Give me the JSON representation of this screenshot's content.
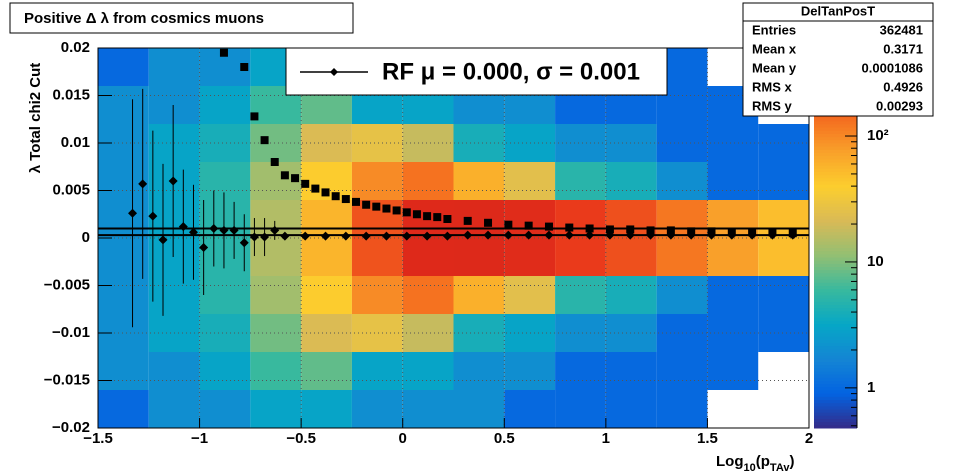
{
  "chart_data": {
    "type": "heatmap",
    "title": "Positive Δ λ from cosmics muons",
    "x_label_parts": [
      "Log",
      "10",
      "(p",
      "TAv",
      ")"
    ],
    "y_label": "λ  Total chi2 Cut",
    "xlim": [
      -1.5,
      2
    ],
    "ylim": [
      -0.02,
      0.02
    ],
    "zlim": [
      0.48,
      500
    ],
    "zlog": true,
    "grid": true,
    "xticks": [
      {
        "value": -1.5,
        "label": "−1.5"
      },
      {
        "value": -1,
        "label": "−1"
      },
      {
        "value": -0.5,
        "label": "−0.5"
      },
      0,
      0.5,
      1,
      1.5,
      2
    ],
    "yticks": [
      0.02,
      0.015,
      0.01,
      0.005,
      0,
      {
        "value": -0.005,
        "label": "−0.005"
      },
      {
        "value": -0.01,
        "label": "−0.01"
      },
      {
        "value": -0.015,
        "label": "−0.015"
      },
      {
        "value": -0.02,
        "label": "−0.02"
      }
    ],
    "zticks": [
      1,
      10,
      {
        "value": 100,
        "label": "10²"
      }
    ],
    "palette": [
      "#352a87",
      "#0363e1",
      "#1485d4",
      "#06a7c6",
      "#38b99e",
      "#92bf73",
      "#d9ba56",
      "#fcce2e",
      "#f9a12a",
      "#f46b1f",
      "#e8321a",
      "#d11f1a"
    ],
    "xbins": [
      -1.5,
      -1.25,
      -1,
      -0.75,
      -0.5,
      -0.25,
      0,
      0.25,
      0.5,
      0.75,
      1,
      1.25,
      1.5,
      1.75,
      2
    ],
    "ybins": [
      0.02,
      0.016,
      0.012,
      0.008,
      0.004,
      0,
      -0.004,
      -0.008,
      -0.012,
      -0.016,
      -0.02
    ],
    "counts": [
      [
        1,
        2,
        2,
        3,
        3,
        2,
        2,
        2,
        1,
        1,
        1,
        1,
        0,
        0
      ],
      [
        2,
        2,
        3,
        6,
        8,
        3,
        3,
        2,
        2,
        1,
        1,
        1,
        1,
        0
      ],
      [
        2,
        3,
        4,
        9,
        22,
        27,
        18,
        4,
        3,
        2,
        2,
        1,
        1,
        1
      ],
      [
        2,
        3,
        5,
        13,
        41,
        97,
        130,
        61,
        25,
        5,
        4,
        2,
        1,
        1
      ],
      [
        2,
        3,
        5,
        15,
        57,
        184,
        353,
        360,
        327,
        243,
        190,
        123,
        76,
        50
      ],
      [
        2,
        3,
        5,
        15,
        57,
        184,
        353,
        360,
        327,
        243,
        190,
        123,
        76,
        50
      ],
      [
        2,
        3,
        5,
        13,
        41,
        97,
        130,
        61,
        25,
        5,
        4,
        2,
        1,
        1
      ],
      [
        2,
        3,
        4,
        9,
        22,
        27,
        18,
        4,
        3,
        2,
        2,
        1,
        1,
        1
      ],
      [
        2,
        2,
        3,
        6,
        8,
        3,
        3,
        2,
        2,
        1,
        1,
        1,
        1,
        0
      ],
      [
        1,
        2,
        2,
        3,
        3,
        2,
        2,
        2,
        1,
        1,
        1,
        1,
        0,
        0
      ]
    ],
    "fit_lines": [
      0.001,
      0.0003
    ],
    "series": [
      {
        "name": "mean",
        "marker": "square",
        "color": "#000000",
        "x": [
          -0.88,
          -0.78,
          -0.73,
          -0.68,
          -0.63,
          -0.58,
          -0.53,
          -0.48,
          -0.43,
          -0.38,
          -0.33,
          -0.28,
          -0.23,
          -0.18,
          -0.13,
          -0.08,
          -0.03,
          0.02,
          0.07,
          0.12,
          0.17,
          0.22,
          0.32,
          0.42,
          0.52,
          0.62,
          0.72,
          0.82,
          0.92,
          1.02,
          1.12,
          1.22,
          1.32,
          1.42,
          1.52,
          1.62,
          1.72,
          1.82,
          1.92
        ],
        "values": [
          0.0195,
          0.018,
          0.0128,
          0.0103,
          0.008,
          0.0066,
          0.0063,
          0.0057,
          0.0052,
          0.0048,
          0.0044,
          0.0041,
          0.0038,
          0.0035,
          0.0033,
          0.0031,
          0.0029,
          0.0027,
          0.0025,
          0.0023,
          0.0022,
          0.002,
          0.0018,
          0.0016,
          0.0014,
          0.0013,
          0.0012,
          0.0011,
          0.001,
          0.0009,
          0.0009,
          0.0008,
          0.0008,
          0.0007,
          0.0007,
          0.0006,
          0.0006,
          0.0006,
          0.0005
        ]
      },
      {
        "name": "RF μ =  0.000, σ =   0.001",
        "marker": "diamond",
        "color": "#000000",
        "x": [
          -1.33,
          -1.28,
          -1.23,
          -1.18,
          -1.13,
          -1.08,
          -1.03,
          -0.98,
          -0.93,
          -0.88,
          -0.83,
          -0.78,
          -0.73,
          -0.68,
          -0.63,
          -0.58,
          -0.48,
          -0.38,
          -0.28,
          -0.18,
          -0.08,
          0.02,
          0.12,
          0.22,
          0.32,
          0.42,
          0.52,
          0.62,
          0.72,
          0.82,
          0.92,
          1.02,
          1.12,
          1.22,
          1.32,
          1.42,
          1.52,
          1.62,
          1.72,
          1.82,
          1.92
        ],
        "values": [
          0.0026,
          0.0057,
          0.0023,
          -0.0002,
          0.006,
          0.0012,
          0.0006,
          -0.001,
          0.001,
          0.0008,
          0.0008,
          -0.0005,
          0.0001,
          0.0001,
          0.0008,
          0.0002,
          0.0002,
          0.0002,
          0.0002,
          0.0002,
          0.0002,
          0.0002,
          0.0002,
          0.0002,
          0.0003,
          0.0003,
          0.0003,
          0.0003,
          0.0003,
          0.0003,
          0.0003,
          0.0003,
          0.0003,
          0.0003,
          0.0003,
          0.0003,
          0.0003,
          0.0003,
          0.0003,
          0.0003,
          0.0003
        ],
        "errors": [
          0.012,
          0.01,
          0.009,
          0.008,
          0.008,
          0.006,
          0.005,
          0.005,
          0.004,
          0.004,
          0.003,
          0.003,
          0.002,
          0.002,
          0.001,
          0.0003,
          0.0003,
          0.0003,
          0.0003,
          0.0003,
          0.0003,
          0.0003,
          0.0003,
          0.0003,
          0.0003,
          0.0003,
          0.0003,
          0.0003,
          0.0003,
          0.0003,
          0.0003,
          0.0003,
          0.0003,
          0.0003,
          0.0003,
          0.0003,
          0.0003,
          0.0003,
          0.0003,
          0.0003,
          0.0003
        ]
      }
    ],
    "legend_series": 1,
    "stats": {
      "title": "DelTanPosT",
      "rows": [
        [
          "Entries",
          "362481"
        ],
        [
          "Mean x",
          "0.3171"
        ],
        [
          "Mean y",
          "0.0001086"
        ],
        [
          "RMS x",
          "0.4926"
        ],
        [
          "RMS y",
          "0.00293"
        ]
      ]
    }
  }
}
